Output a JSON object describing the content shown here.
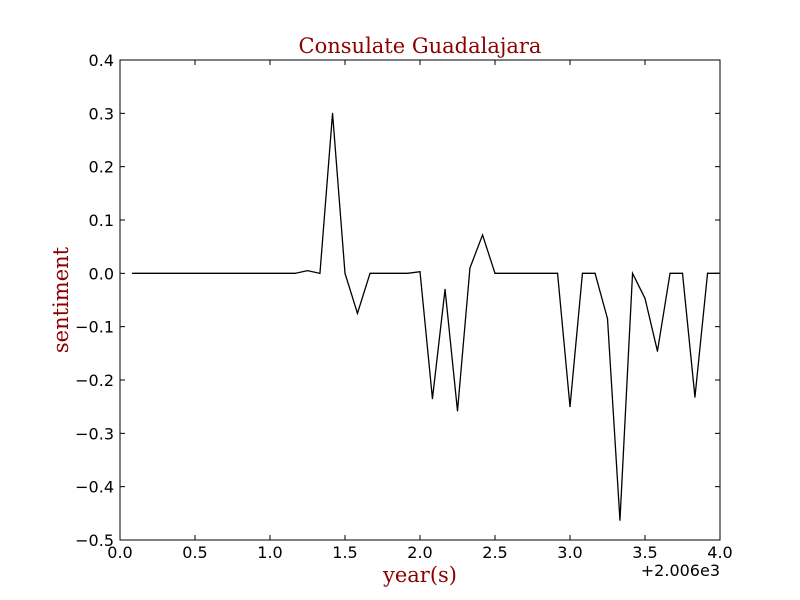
{
  "chart_data": {
    "type": "line",
    "title": "Consulate Guadalajara",
    "xlabel": "year(s)",
    "ylabel": "sentiment",
    "x_offset_label": "+2.006e3",
    "xlim": [
      0.0,
      4.0
    ],
    "ylim": [
      -0.5,
      0.4
    ],
    "x_ticks": [
      "0.0",
      "0.5",
      "1.0",
      "1.5",
      "2.0",
      "2.5",
      "3.0",
      "3.5",
      "4.0"
    ],
    "y_ticks": [
      "−0.5",
      "−0.4",
      "−0.3",
      "−0.2",
      "−0.1",
      "0.0",
      "0.1",
      "0.2",
      "0.3",
      "0.4"
    ],
    "grid": false,
    "colors": {
      "line": "#000000",
      "title": "#8b0000",
      "axis_title": "#8b0000"
    },
    "series": [
      {
        "x": [
          0.083,
          0.167,
          0.25,
          0.333,
          0.417,
          0.5,
          0.583,
          0.667,
          0.75,
          0.833,
          0.917,
          1.0,
          1.083,
          1.167,
          1.25,
          1.333,
          1.417,
          1.5,
          1.583,
          1.667,
          1.75,
          1.833,
          1.917,
          2.0,
          2.083,
          2.167,
          2.25,
          2.333,
          2.417,
          2.5,
          2.583,
          2.667,
          2.75,
          2.833,
          2.917,
          3.0,
          3.083,
          3.167,
          3.25,
          3.333,
          3.417,
          3.5,
          3.583,
          3.667,
          3.75,
          3.833,
          3.917,
          4.0
        ],
        "values": [
          0,
          0,
          0,
          0,
          0,
          0,
          0,
          0,
          0,
          0,
          0,
          0,
          0,
          0,
          0.005,
          0,
          0.3,
          0,
          -0.075,
          0,
          0,
          0,
          0,
          0.003,
          -0.235,
          -0.03,
          -0.258,
          0.01,
          0.072,
          0,
          0,
          0,
          0,
          0,
          0,
          -0.25,
          0,
          0,
          -0.085,
          -0.463,
          0,
          -0.047,
          -0.146,
          0,
          0,
          -0.232,
          0,
          0
        ]
      }
    ]
  }
}
